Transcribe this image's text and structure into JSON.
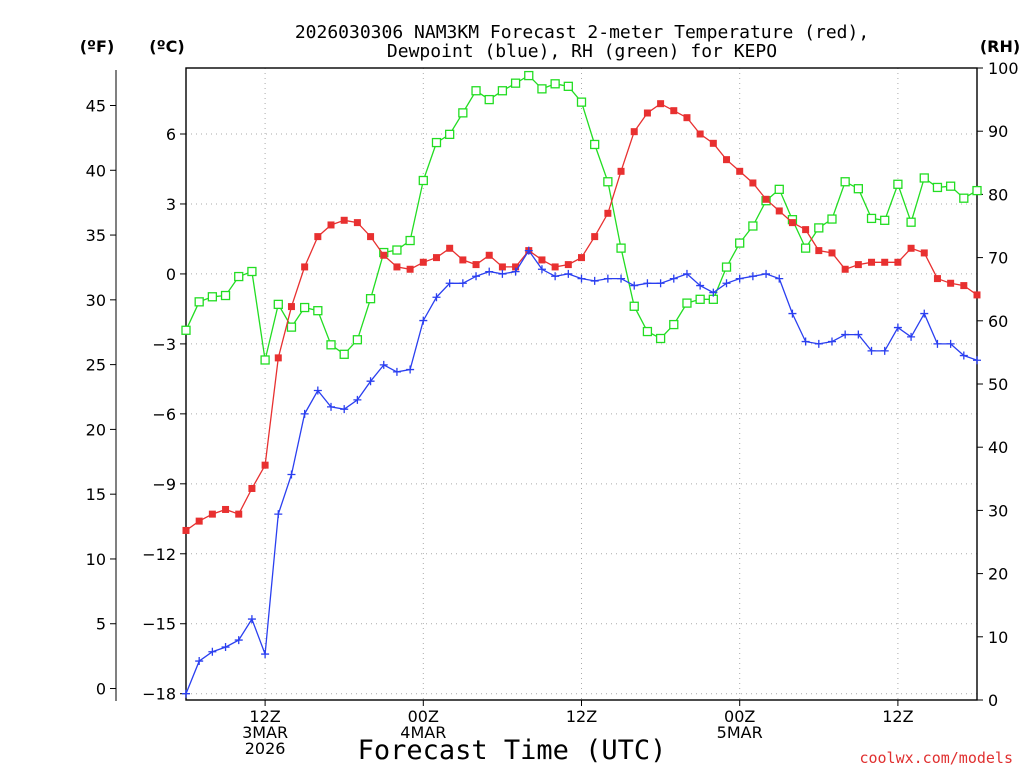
{
  "chart_data": {
    "type": "line",
    "title_line1": "2026030306 NAM3KM Forecast 2-meter Temperature (red),",
    "title_line2": "Dewpoint (blue), RH (green) for KEPO",
    "xlabel": "Forecast Time (UTC)",
    "credit": "coolwx.com/models",
    "units": {
      "fahrenheit": "(ºF)",
      "celsius": "(ºC)",
      "rh": "(RH)"
    },
    "x_unit": "hours after 2026-03-03 06Z",
    "xlim": [
      0,
      60
    ],
    "x_ticks": [
      {
        "x": 6,
        "lines": [
          "12Z",
          "3MAR",
          "2026"
        ]
      },
      {
        "x": 18,
        "lines": [
          "00Z",
          "4MAR"
        ]
      },
      {
        "x": 30,
        "lines": [
          "12Z"
        ]
      },
      {
        "x": 42,
        "lines": [
          "00Z",
          "5MAR"
        ]
      },
      {
        "x": 54,
        "lines": [
          "12Z"
        ]
      }
    ],
    "celsius_axis": {
      "ylim": [
        -18.27,
        8.83
      ],
      "ticks": [
        -18,
        -15,
        -12,
        -9,
        -6,
        -3,
        0,
        3,
        6
      ],
      "tick_labels": [
        "−18",
        "−15",
        "−12",
        "−9",
        "−6",
        "−3",
        "0",
        "3",
        "6"
      ]
    },
    "fahrenheit_axis": {
      "ticks": [
        0,
        5,
        10,
        15,
        20,
        25,
        30,
        35,
        40,
        45
      ],
      "tick_labels": [
        "0",
        "5",
        "10",
        "15",
        "20",
        "25",
        "30",
        "35",
        "40",
        "45"
      ]
    },
    "rh_axis": {
      "ylim": [
        0,
        100
      ],
      "ticks": [
        0,
        10,
        20,
        30,
        40,
        50,
        60,
        70,
        80,
        90,
        100
      ],
      "tick_labels": [
        "0",
        "10",
        "20",
        "30",
        "40",
        "50",
        "60",
        "70",
        "80",
        "90",
        "100"
      ]
    },
    "x": [
      0,
      1,
      2,
      3,
      4,
      5,
      6,
      7,
      8,
      9,
      10,
      11,
      12,
      13,
      14,
      15,
      16,
      17,
      18,
      19,
      20,
      21,
      22,
      23,
      24,
      25,
      26,
      27,
      28,
      29,
      30,
      31,
      32,
      33,
      34,
      35,
      36,
      37,
      38,
      39,
      40,
      41,
      42,
      43,
      44,
      45,
      46,
      47,
      48,
      49,
      50,
      51,
      52,
      53,
      54,
      55,
      56,
      57,
      58,
      59,
      60
    ],
    "series": [
      {
        "name": "2-meter Temperature",
        "unit": "°C",
        "color": "#e83030",
        "marker": "filled-square",
        "values": [
          -11.0,
          -10.6,
          -10.3,
          -10.1,
          -10.3,
          -9.2,
          -8.2,
          -3.6,
          -1.4,
          0.3,
          1.6,
          2.1,
          2.3,
          2.2,
          1.6,
          0.8,
          0.3,
          0.2,
          0.5,
          0.7,
          1.1,
          0.6,
          0.4,
          0.8,
          0.3,
          0.3,
          1.0,
          0.6,
          0.3,
          0.4,
          0.7,
          1.6,
          2.6,
          4.4,
          6.1,
          6.9,
          7.3,
          7.0,
          6.7,
          6.0,
          5.6,
          4.9,
          4.4,
          3.9,
          3.2,
          2.7,
          2.2,
          1.9,
          1.0,
          0.9,
          0.2,
          0.4,
          0.5,
          0.5,
          0.5,
          1.1,
          0.9,
          -0.2,
          -0.4,
          -0.5,
          -0.9
        ]
      },
      {
        "name": "Dewpoint",
        "unit": "°C",
        "color": "#2a3ff0",
        "marker": "plus",
        "values": [
          -18.0,
          -16.6,
          -16.2,
          -16.0,
          -15.7,
          -14.8,
          -16.3,
          -10.3,
          -8.6,
          -6.0,
          -5.0,
          -5.7,
          -5.8,
          -5.4,
          -4.6,
          -3.9,
          -4.2,
          -4.1,
          -2.0,
          -1.0,
          -0.4,
          -0.4,
          -0.1,
          0.1,
          0.0,
          0.1,
          1.0,
          0.2,
          -0.1,
          0.0,
          -0.2,
          -0.3,
          -0.2,
          -0.2,
          -0.5,
          -0.4,
          -0.4,
          -0.2,
          0.0,
          -0.5,
          -0.8,
          -0.4,
          -0.2,
          -0.1,
          0.0,
          -0.2,
          -1.7,
          -2.9,
          -3.0,
          -2.9,
          -2.6,
          -2.6,
          -3.3,
          -3.3,
          -2.3,
          -2.7,
          -1.7,
          -3.0,
          -3.0,
          -3.5,
          -3.7
        ]
      },
      {
        "name": "RH",
        "unit": "%",
        "color": "#22dd22",
        "marker": "open-square",
        "values": [
          58.5,
          63,
          63.8,
          64,
          67,
          67.8,
          53.8,
          62.6,
          59,
          62.1,
          61.6,
          56.2,
          54.7,
          57,
          63.5,
          70.8,
          71.2,
          72.7,
          82.2,
          88.2,
          89.5,
          92.9,
          96.4,
          95,
          96.4,
          97.6,
          98.8,
          96.7,
          97.5,
          97.1,
          94.6,
          87.9,
          82,
          71.5,
          62.3,
          58.3,
          57.2,
          59.4,
          62.8,
          63.4,
          63.4,
          68.5,
          72.3,
          75,
          79,
          80.8,
          76,
          71.5,
          74.7,
          76.1,
          82,
          80.9,
          76.2,
          75.9,
          81.6,
          75.6,
          82.6,
          81.1,
          81.3,
          79.4,
          80.6
        ]
      }
    ]
  }
}
